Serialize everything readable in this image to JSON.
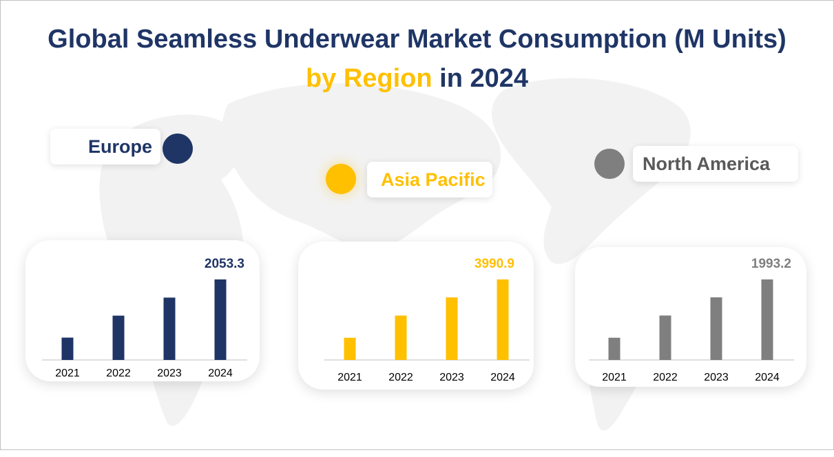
{
  "title": {
    "line1": "Global Seamless Underwear Market Consumption (M Units)",
    "line2_highlight": "by Region",
    "line2_rest": " in 2024"
  },
  "colors": {
    "navy": "#1f3566",
    "yellow": "#ffc000",
    "gray": "#7f7f7f"
  },
  "regions": {
    "europe": {
      "label": "Europe"
    },
    "asia": {
      "label": "Asia Pacific"
    },
    "na": {
      "label": "North America"
    }
  },
  "chart_data": [
    {
      "type": "bar",
      "region": "Europe",
      "categories": [
        "2021",
        "2022",
        "2023",
        "2024"
      ],
      "values": [
        570,
        1130,
        1590,
        2053.3
      ],
      "data_labels": {
        "2024": "2053.3"
      },
      "color": "#1f3566"
    },
    {
      "type": "bar",
      "region": "Asia Pacific",
      "categories": [
        "2021",
        "2022",
        "2023",
        "2024"
      ],
      "values": [
        1100,
        2200,
        3100,
        3990.9
      ],
      "data_labels": {
        "2024": "3990.9"
      },
      "color": "#ffc000"
    },
    {
      "type": "bar",
      "region": "North America",
      "categories": [
        "2021",
        "2022",
        "2023",
        "2024"
      ],
      "values": [
        550,
        1100,
        1550,
        1993.2
      ],
      "data_labels": {
        "2024": "1993.2"
      },
      "color": "#7f7f7f"
    }
  ]
}
